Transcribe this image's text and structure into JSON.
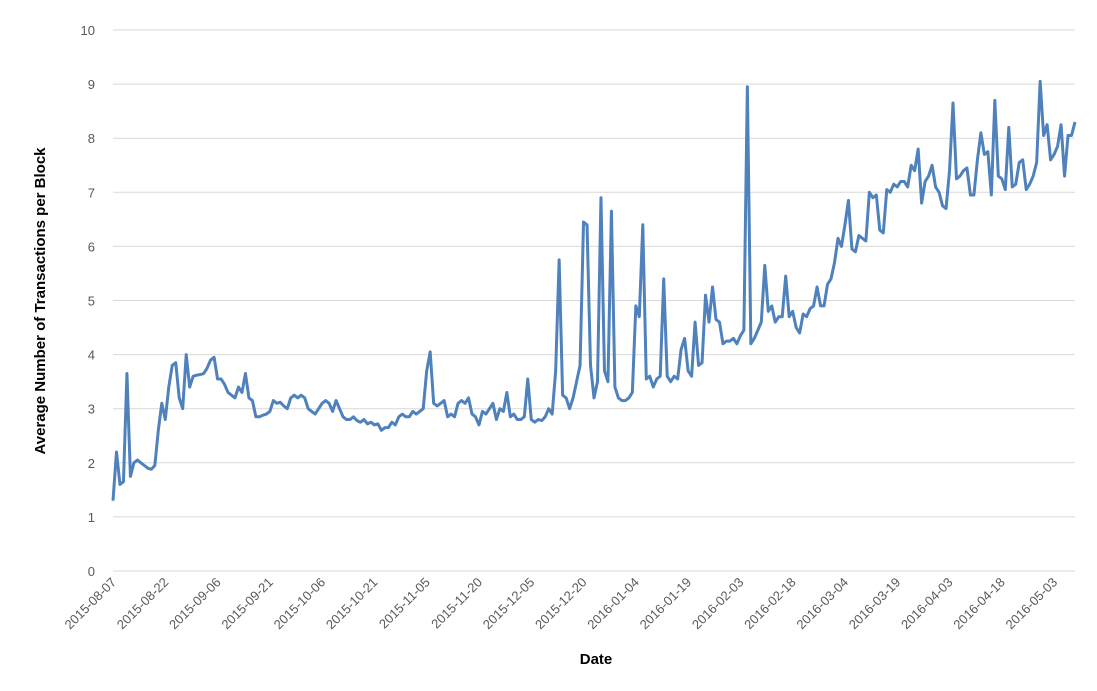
{
  "chart_data": {
    "type": "line",
    "x_label": "Date",
    "y_label": "Average Number of Transactions per Block",
    "x": [
      "2015-08-07",
      "2015-08-08",
      "2015-08-09",
      "2015-08-10",
      "2015-08-11",
      "2015-08-12",
      "2015-08-13",
      "2015-08-14",
      "2015-08-15",
      "2015-08-16",
      "2015-08-17",
      "2015-08-18",
      "2015-08-19",
      "2015-08-20",
      "2015-08-21",
      "2015-08-22",
      "2015-08-23",
      "2015-08-24",
      "2015-08-25",
      "2015-08-26",
      "2015-08-27",
      "2015-08-28",
      "2015-08-29",
      "2015-08-30",
      "2015-08-31",
      "2015-09-01",
      "2015-09-02",
      "2015-09-03",
      "2015-09-04",
      "2015-09-05",
      "2015-09-06",
      "2015-09-07",
      "2015-09-08",
      "2015-09-09",
      "2015-09-10",
      "2015-09-11",
      "2015-09-12",
      "2015-09-13",
      "2015-09-14",
      "2015-09-15",
      "2015-09-16",
      "2015-09-17",
      "2015-09-18",
      "2015-09-19",
      "2015-09-20",
      "2015-09-21",
      "2015-09-22",
      "2015-09-23",
      "2015-09-24",
      "2015-09-25",
      "2015-09-26",
      "2015-09-27",
      "2015-09-28",
      "2015-09-29",
      "2015-09-30",
      "2015-10-01",
      "2015-10-02",
      "2015-10-03",
      "2015-10-04",
      "2015-10-05",
      "2015-10-06",
      "2015-10-07",
      "2015-10-08",
      "2015-10-09",
      "2015-10-10",
      "2015-10-11",
      "2015-10-12",
      "2015-10-13",
      "2015-10-14",
      "2015-10-15",
      "2015-10-16",
      "2015-10-17",
      "2015-10-18",
      "2015-10-19",
      "2015-10-20",
      "2015-10-21",
      "2015-10-22",
      "2015-10-23",
      "2015-10-24",
      "2015-10-25",
      "2015-10-26",
      "2015-10-27",
      "2015-10-28",
      "2015-10-29",
      "2015-10-30",
      "2015-10-31",
      "2015-11-01",
      "2015-11-02",
      "2015-11-03",
      "2015-11-04",
      "2015-11-05",
      "2015-11-06",
      "2015-11-07",
      "2015-11-08",
      "2015-11-09",
      "2015-11-10",
      "2015-11-11",
      "2015-11-12",
      "2015-11-13",
      "2015-11-14",
      "2015-11-15",
      "2015-11-16",
      "2015-11-17",
      "2015-11-18",
      "2015-11-19",
      "2015-11-20",
      "2015-11-21",
      "2015-11-22",
      "2015-11-23",
      "2015-11-24",
      "2015-11-25",
      "2015-11-26",
      "2015-11-27",
      "2015-11-28",
      "2015-11-29",
      "2015-11-30",
      "2015-12-01",
      "2015-12-02",
      "2015-12-03",
      "2015-12-04",
      "2015-12-05",
      "2015-12-06",
      "2015-12-07",
      "2015-12-08",
      "2015-12-09",
      "2015-12-10",
      "2015-12-11",
      "2015-12-12",
      "2015-12-13",
      "2015-12-14",
      "2015-12-15",
      "2015-12-16",
      "2015-12-17",
      "2015-12-18",
      "2015-12-19",
      "2015-12-20",
      "2015-12-21",
      "2015-12-22",
      "2015-12-23",
      "2015-12-24",
      "2015-12-25",
      "2015-12-26",
      "2015-12-27",
      "2015-12-28",
      "2015-12-29",
      "2015-12-30",
      "2015-12-31",
      "2016-01-01",
      "2016-01-02",
      "2016-01-03",
      "2016-01-04",
      "2016-01-05",
      "2016-01-06",
      "2016-01-07",
      "2016-01-08",
      "2016-01-09",
      "2016-01-10",
      "2016-01-11",
      "2016-01-12",
      "2016-01-13",
      "2016-01-14",
      "2016-01-15",
      "2016-01-16",
      "2016-01-17",
      "2016-01-18",
      "2016-01-19",
      "2016-01-20",
      "2016-01-21",
      "2016-01-22",
      "2016-01-23",
      "2016-01-24",
      "2016-01-25",
      "2016-01-26",
      "2016-01-27",
      "2016-01-28",
      "2016-01-29",
      "2016-01-30",
      "2016-01-31",
      "2016-02-01",
      "2016-02-02",
      "2016-02-03",
      "2016-02-04",
      "2016-02-05",
      "2016-02-06",
      "2016-02-07",
      "2016-02-08",
      "2016-02-09",
      "2016-02-10",
      "2016-02-11",
      "2016-02-12",
      "2016-02-13",
      "2016-02-14",
      "2016-02-15",
      "2016-02-16",
      "2016-02-17",
      "2016-02-18",
      "2016-02-19",
      "2016-02-20",
      "2016-02-21",
      "2016-02-22",
      "2016-02-23",
      "2016-02-24",
      "2016-02-25",
      "2016-02-26",
      "2016-02-27",
      "2016-02-28",
      "2016-02-29",
      "2016-03-01",
      "2016-03-02",
      "2016-03-03",
      "2016-03-04",
      "2016-03-05",
      "2016-03-06",
      "2016-03-07",
      "2016-03-08",
      "2016-03-09",
      "2016-03-10",
      "2016-03-11",
      "2016-03-12",
      "2016-03-13",
      "2016-03-14",
      "2016-03-15",
      "2016-03-16",
      "2016-03-17",
      "2016-03-18",
      "2016-03-19",
      "2016-03-20",
      "2016-03-21",
      "2016-03-22",
      "2016-03-23",
      "2016-03-24",
      "2016-03-25",
      "2016-03-26",
      "2016-03-27",
      "2016-03-28",
      "2016-03-29",
      "2016-03-30",
      "2016-03-31",
      "2016-04-01",
      "2016-04-02",
      "2016-04-03",
      "2016-04-04",
      "2016-04-05",
      "2016-04-06",
      "2016-04-07",
      "2016-04-08",
      "2016-04-09",
      "2016-04-10",
      "2016-04-11",
      "2016-04-12",
      "2016-04-13",
      "2016-04-14",
      "2016-04-15",
      "2016-04-16",
      "2016-04-17",
      "2016-04-18",
      "2016-04-19",
      "2016-04-20",
      "2016-04-21",
      "2016-04-22",
      "2016-04-23",
      "2016-04-24",
      "2016-04-25",
      "2016-04-26",
      "2016-04-27",
      "2016-04-28",
      "2016-04-29",
      "2016-04-30",
      "2016-05-01",
      "2016-05-02",
      "2016-05-03",
      "2016-05-04",
      "2016-05-05",
      "2016-05-06",
      "2016-05-07",
      "2016-05-08",
      "2016-05-09"
    ],
    "series": [
      {
        "color": "#4f81bd",
        "values": [
          1.3,
          2.2,
          1.6,
          1.65,
          3.65,
          1.75,
          2.0,
          2.05,
          2.0,
          1.95,
          1.9,
          1.88,
          1.95,
          2.6,
          3.1,
          2.8,
          3.4,
          3.8,
          3.85,
          3.2,
          3.0,
          4.0,
          3.4,
          3.6,
          3.62,
          3.63,
          3.65,
          3.75,
          3.9,
          3.95,
          3.55,
          3.55,
          3.45,
          3.3,
          3.25,
          3.2,
          3.4,
          3.3,
          3.65,
          3.2,
          3.15,
          2.85,
          2.85,
          2.88,
          2.9,
          2.95,
          3.15,
          3.1,
          3.12,
          3.05,
          3.0,
          3.2,
          3.25,
          3.2,
          3.25,
          3.2,
          3.0,
          2.95,
          2.9,
          3.0,
          3.1,
          3.15,
          3.1,
          2.95,
          3.15,
          3.0,
          2.85,
          2.8,
          2.8,
          2.85,
          2.78,
          2.75,
          2.8,
          2.72,
          2.75,
          2.7,
          2.72,
          2.6,
          2.65,
          2.65,
          2.75,
          2.7,
          2.85,
          2.9,
          2.85,
          2.85,
          2.95,
          2.9,
          2.95,
          3.0,
          3.7,
          4.05,
          3.1,
          3.05,
          3.1,
          3.15,
          2.85,
          2.9,
          2.85,
          3.1,
          3.15,
          3.1,
          3.2,
          2.9,
          2.85,
          2.7,
          2.95,
          2.9,
          3.0,
          3.1,
          2.8,
          3.0,
          2.95,
          3.3,
          2.85,
          2.9,
          2.8,
          2.8,
          2.85,
          3.55,
          2.8,
          2.75,
          2.8,
          2.78,
          2.85,
          3.0,
          2.9,
          3.7,
          5.75,
          3.25,
          3.2,
          3.0,
          3.2,
          3.5,
          3.8,
          6.45,
          6.4,
          3.8,
          3.2,
          3.5,
          6.9,
          3.7,
          3.5,
          6.65,
          3.4,
          3.2,
          3.15,
          3.15,
          3.2,
          3.3,
          4.9,
          4.7,
          6.4,
          3.55,
          3.6,
          3.4,
          3.55,
          3.6,
          5.4,
          3.6,
          3.5,
          3.6,
          3.55,
          4.1,
          4.3,
          3.7,
          3.6,
          4.6,
          3.8,
          3.85,
          5.1,
          4.6,
          5.25,
          4.65,
          4.6,
          4.2,
          4.25,
          4.25,
          4.3,
          4.2,
          4.35,
          4.45,
          8.95,
          4.2,
          4.3,
          4.45,
          4.6,
          5.65,
          4.8,
          4.9,
          4.6,
          4.7,
          4.7,
          5.45,
          4.7,
          4.8,
          4.5,
          4.4,
          4.75,
          4.7,
          4.85,
          4.9,
          5.25,
          4.9,
          4.9,
          5.3,
          5.4,
          5.7,
          6.15,
          6.0,
          6.4,
          6.85,
          5.95,
          5.9,
          6.2,
          6.15,
          6.1,
          7.0,
          6.9,
          6.95,
          6.3,
          6.25,
          7.05,
          7.0,
          7.15,
          7.1,
          7.2,
          7.2,
          7.1,
          7.5,
          7.4,
          7.8,
          6.8,
          7.2,
          7.3,
          7.5,
          7.1,
          7.0,
          6.75,
          6.7,
          7.4,
          8.65,
          7.25,
          7.3,
          7.4,
          7.45,
          6.95,
          6.95,
          7.6,
          8.1,
          7.7,
          7.75,
          6.95,
          8.7,
          7.3,
          7.25,
          7.05,
          8.2,
          7.1,
          7.15,
          7.55,
          7.6,
          7.05,
          7.15,
          7.3,
          7.55,
          9.05,
          8.05,
          8.25,
          7.6,
          7.7,
          7.85,
          8.25,
          7.3,
          8.05,
          8.05,
          8.3
        ]
      }
    ],
    "xticks": [
      "2015-08-07",
      "2015-08-22",
      "2015-09-06",
      "2015-09-21",
      "2015-10-06",
      "2015-10-21",
      "2015-11-05",
      "2015-11-20",
      "2015-12-05",
      "2015-12-20",
      "2016-01-04",
      "2016-01-19",
      "2016-02-03",
      "2016-02-18",
      "2016-03-04",
      "2016-03-19",
      "2016-04-03",
      "2016-04-18",
      "2016-05-03"
    ],
    "ylim": [
      0,
      10
    ],
    "yticks": [
      0,
      1,
      2,
      3,
      4,
      5,
      6,
      7,
      8,
      9,
      10
    ],
    "grid": true
  }
}
